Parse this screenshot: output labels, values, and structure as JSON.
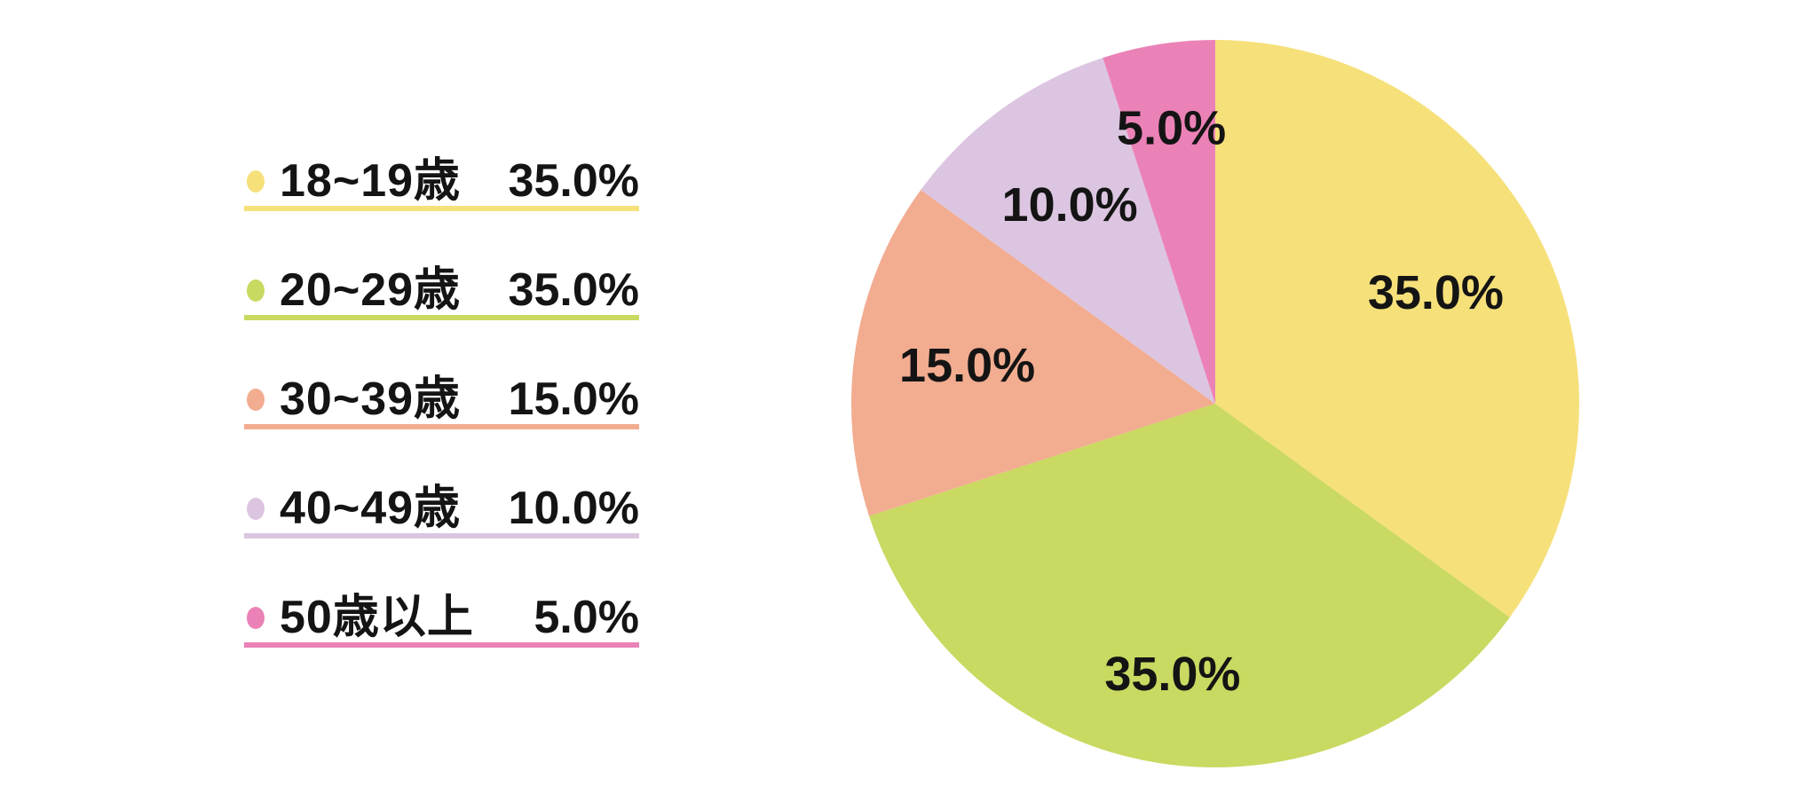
{
  "chart_data": {
    "type": "pie",
    "title": "",
    "categories": [
      "18~19歳",
      "20~29歳",
      "30~39歳",
      "40~49歳",
      "50歳以上"
    ],
    "values": [
      35.0,
      35.0,
      15.0,
      10.0,
      5.0
    ],
    "slices": [
      {
        "label": "18~19歳",
        "value": 35.0,
        "pct_label": "35.0%",
        "color": "#F6E07A"
      },
      {
        "label": "20~29歳",
        "value": 35.0,
        "pct_label": "35.0%",
        "color": "#C9D961"
      },
      {
        "label": "30~39歳",
        "value": 15.0,
        "pct_label": "15.0%",
        "color": "#F2AC90"
      },
      {
        "label": "40~49歳",
        "value": 10.0,
        "pct_label": "10.0%",
        "color": "#DCC5E0"
      },
      {
        "label": "50歳以上",
        "value": 5.0,
        "pct_label": "5.0%",
        "color": "#EB82B7"
      }
    ],
    "start_angle": "12-o-clock",
    "direction": "clockwise",
    "label_distances": [
      0.68,
      0.75,
      0.69,
      0.68,
      0.77
    ],
    "legend_position": "left",
    "background_color": "#FFFFFF",
    "text_color": "#141414"
  }
}
